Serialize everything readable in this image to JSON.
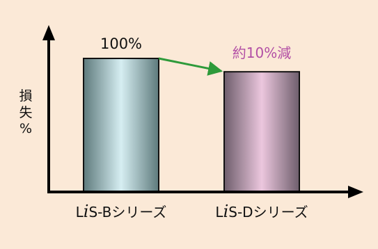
{
  "chart_data": {
    "type": "bar",
    "categories": [
      "LiS-Bシリーズ",
      "LiS-Dシリーズ"
    ],
    "category_labels": [
      {
        "prefix": "L",
        "italic": "i",
        "suffix": "S-Bシリーズ"
      },
      {
        "prefix": "L",
        "italic": "i",
        "suffix": "S-Dシリーズ"
      }
    ],
    "values": [
      100,
      90
    ],
    "ylim": [
      0,
      125
    ],
    "ylabel": [
      "損",
      "失",
      "%"
    ],
    "data_labels": [
      "100%",
      ""
    ],
    "annotation": {
      "text": "約10%減",
      "color": "#b24fa5",
      "arrow_color": "#2e9a3a"
    },
    "bar_styles": [
      {
        "edge": "#5e7a7c",
        "center": "#d6eef2"
      },
      {
        "edge": "#6e5e6c",
        "center": "#ecc7de"
      }
    ],
    "grid": false,
    "background": "#fbe9d7"
  }
}
